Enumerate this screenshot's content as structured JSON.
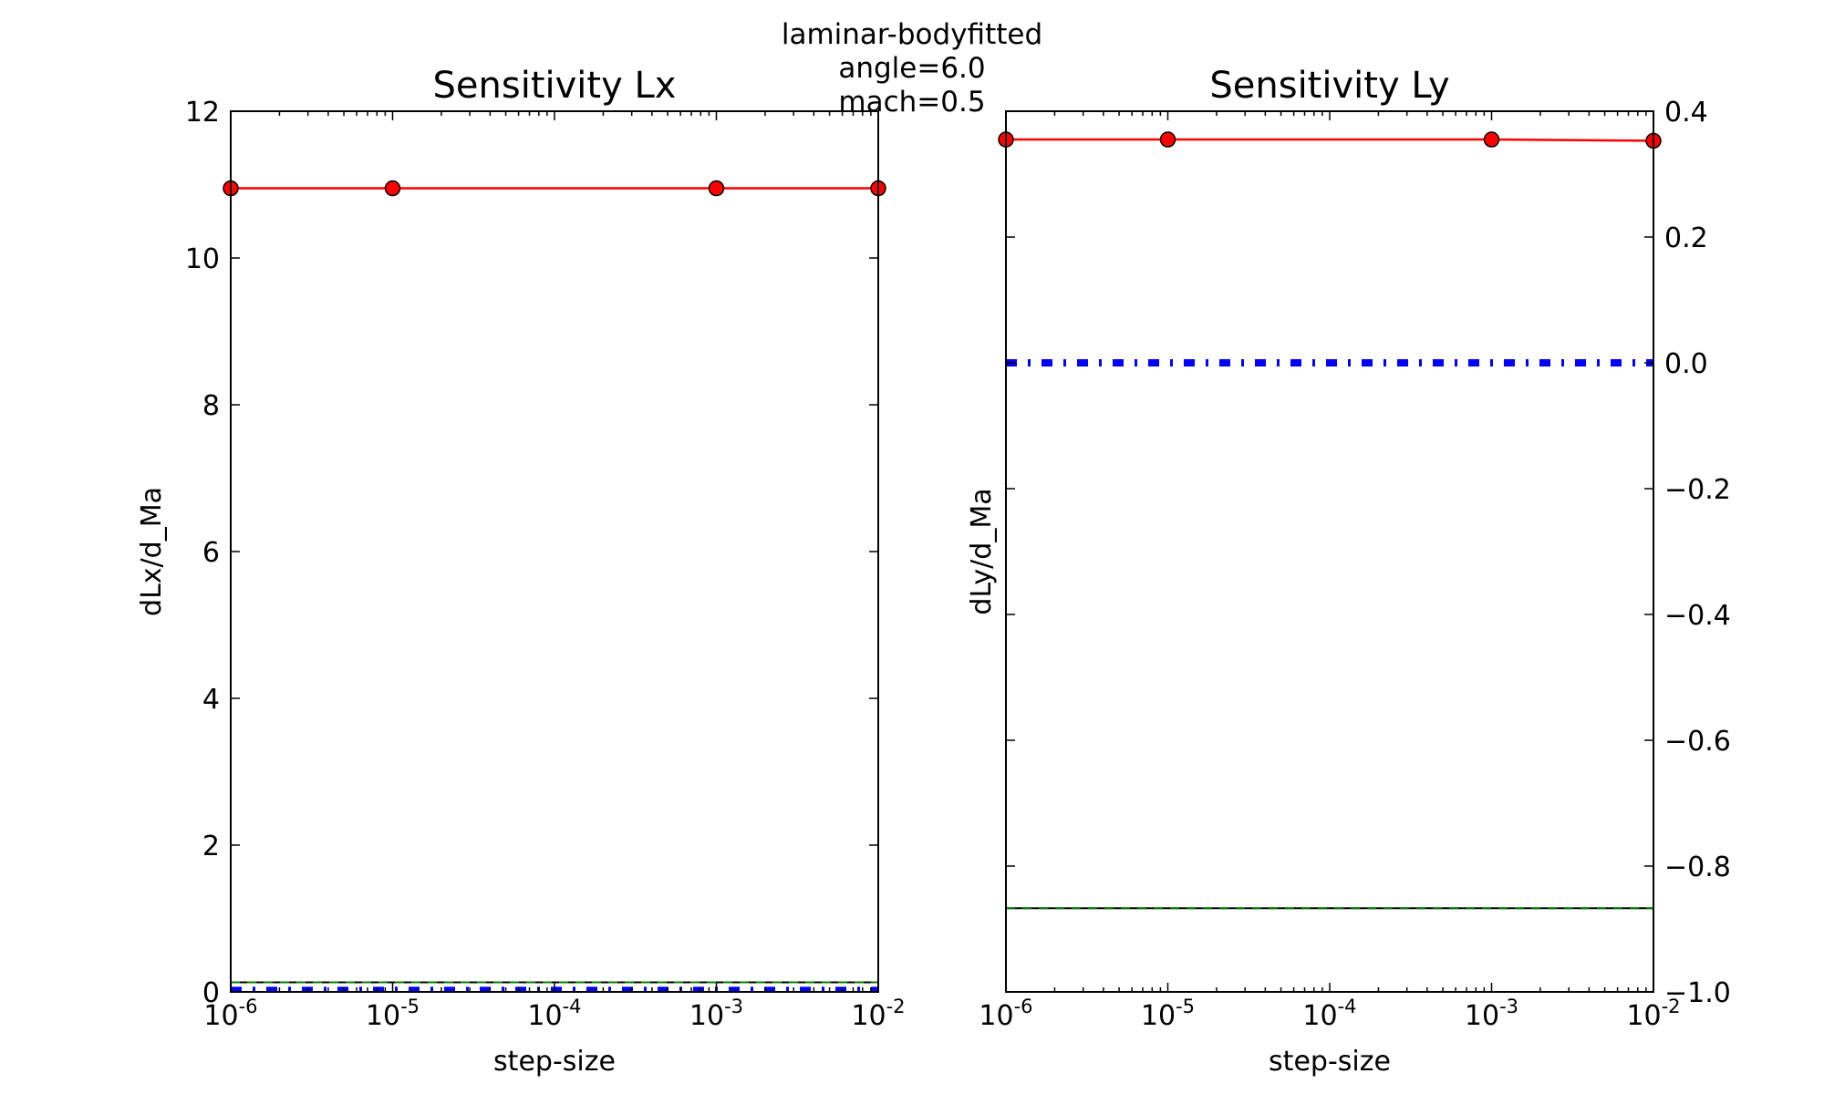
{
  "suptitle_lines": [
    "laminar-bodyfitted",
    "angle=6.0",
    "mach=0.5"
  ],
  "colors": {
    "red_series": "#ff0000",
    "blue_series": "#0000ff",
    "green_series": "#008000",
    "black_series": "#000000",
    "marker_edge": "#000000"
  },
  "chart_data": [
    {
      "type": "line",
      "title": "Sensitivity Lx",
      "xlabel": "step-size",
      "ylabel": "dLx/d_Ma",
      "xscale": "log",
      "xlim": [
        1e-06,
        0.01
      ],
      "ylim": [
        0,
        12
      ],
      "yaxis_side": "left",
      "grid": false,
      "xtick_exponents": [
        "-6",
        "-5",
        "-4",
        "-3",
        "-2"
      ],
      "yticks": [
        "0",
        "2",
        "4",
        "6",
        "8",
        "10",
        "12"
      ],
      "series": [
        {
          "style": "solid-markers",
          "color": "#ff0000",
          "x": [
            1e-06,
            1e-05,
            0.001,
            0.01
          ],
          "y": [
            10.95,
            10.95,
            10.95,
            10.95
          ]
        },
        {
          "style": "dashdot-thick",
          "color": "#0000ff",
          "x": [
            1e-06,
            0.01
          ],
          "y": [
            0.02,
            0.02
          ]
        },
        {
          "style": "solid",
          "color": "#000000",
          "x": [
            1e-06,
            0.01
          ],
          "y": [
            0.13,
            0.13
          ]
        },
        {
          "style": "dashed",
          "color": "#008000",
          "x": [
            1e-06,
            0.01
          ],
          "y": [
            0.13,
            0.13
          ]
        }
      ]
    },
    {
      "type": "line",
      "title": "Sensitivity Ly",
      "xlabel": "step-size",
      "ylabel": "dLy/d_Ma",
      "xscale": "log",
      "xlim": [
        1e-06,
        0.01
      ],
      "ylim": [
        -1.0,
        0.4
      ],
      "yaxis_side": "right",
      "grid": false,
      "xtick_exponents": [
        "-6",
        "-5",
        "-4",
        "-3",
        "-2"
      ],
      "yticks": [
        "−1.0",
        "−0.8",
        "−0.6",
        "−0.4",
        "−0.2",
        "0.0",
        "0.2",
        "0.4"
      ],
      "series": [
        {
          "style": "solid-markers",
          "color": "#ff0000",
          "x": [
            1e-06,
            1e-05,
            0.001,
            0.01
          ],
          "y": [
            0.355,
            0.355,
            0.355,
            0.353
          ]
        },
        {
          "style": "dashdot-thick",
          "color": "#0000ff",
          "x": [
            1e-06,
            0.01
          ],
          "y": [
            0.0,
            0.0
          ]
        },
        {
          "style": "solid",
          "color": "#000000",
          "x": [
            1e-06,
            0.01
          ],
          "y": [
            -0.867,
            -0.867
          ]
        },
        {
          "style": "dashed",
          "color": "#008000",
          "x": [
            1e-06,
            0.01
          ],
          "y": [
            -0.867,
            -0.867
          ]
        }
      ]
    }
  ]
}
